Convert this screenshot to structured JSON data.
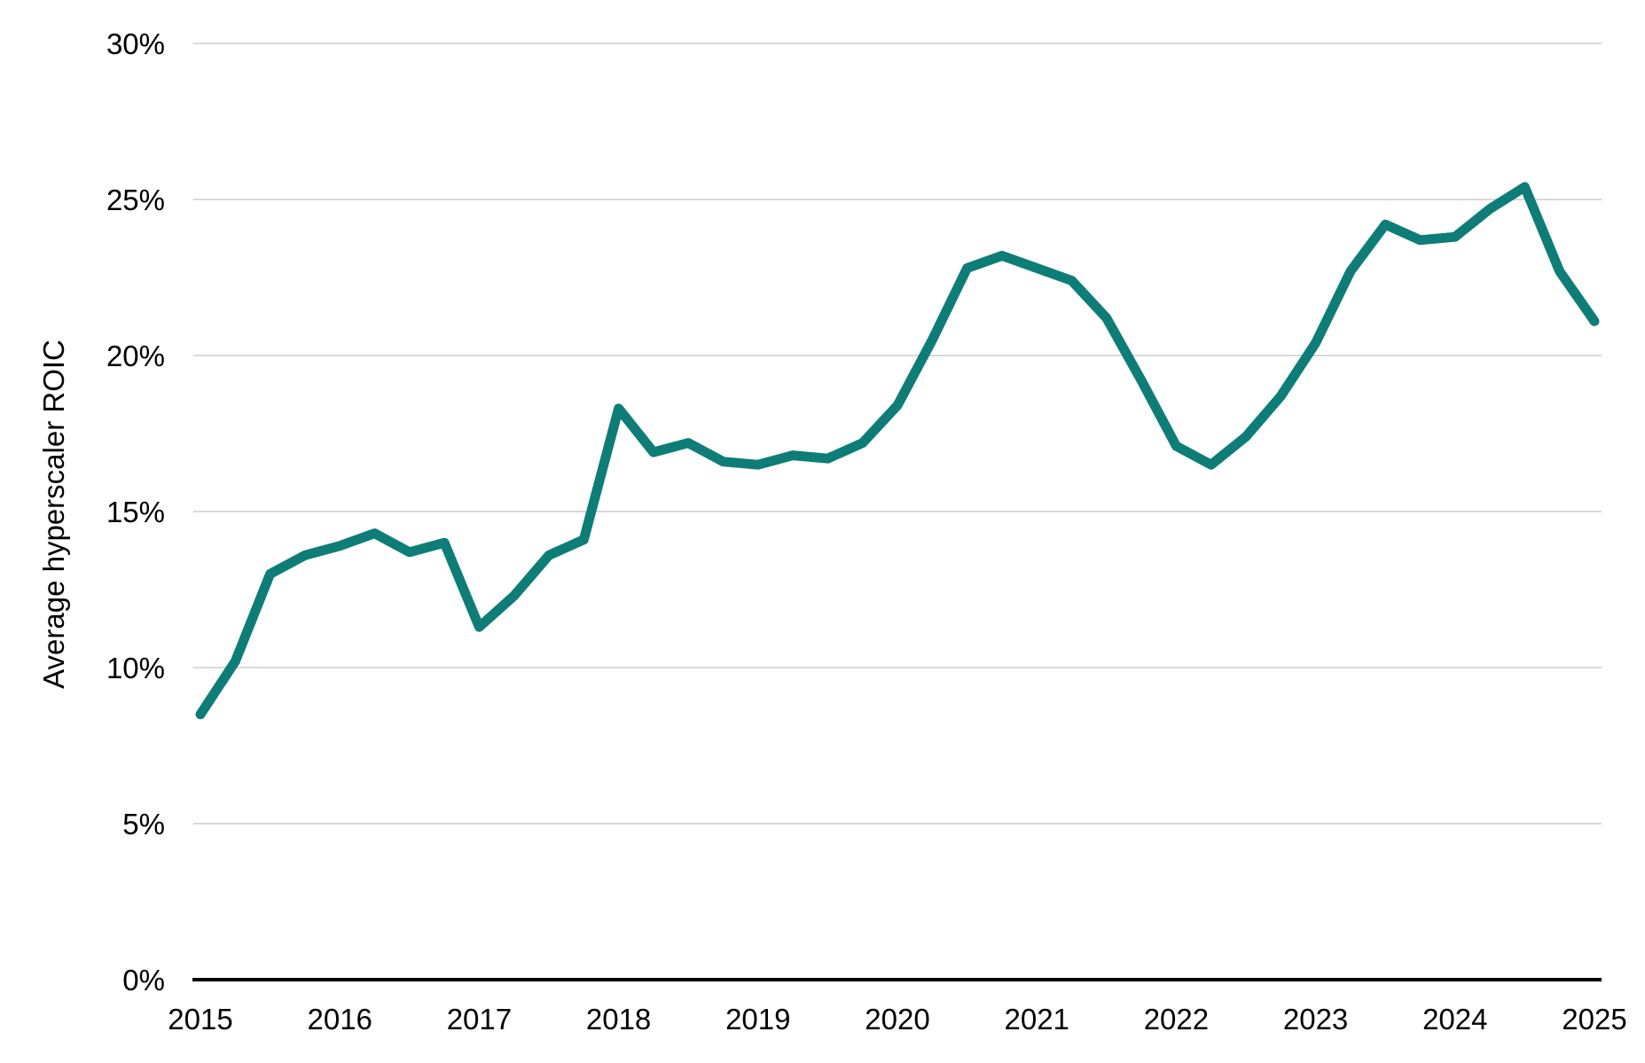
{
  "chart_data": {
    "type": "line",
    "title": "",
    "xlabel": "",
    "ylabel": "Average hyperscaler ROIC",
    "series_name": "Average hyperscaler ROIC",
    "x": [
      2015.0,
      2015.25,
      2015.5,
      2015.75,
      2016.0,
      2016.25,
      2016.5,
      2016.75,
      2017.0,
      2017.25,
      2017.5,
      2017.75,
      2018.0,
      2018.25,
      2018.5,
      2018.75,
      2019.0,
      2019.25,
      2019.5,
      2019.75,
      2020.0,
      2020.25,
      2020.5,
      2020.75,
      2021.0,
      2021.25,
      2021.5,
      2021.75,
      2022.0,
      2022.25,
      2022.5,
      2022.75,
      2023.0,
      2023.25,
      2023.5,
      2023.75,
      2024.0,
      2024.25,
      2024.5,
      2024.75,
      2025.0
    ],
    "values": [
      8.5,
      10.2,
      13.0,
      13.6,
      13.9,
      14.3,
      13.7,
      14.0,
      11.3,
      12.3,
      13.6,
      14.1,
      18.3,
      16.9,
      17.2,
      16.6,
      16.5,
      16.8,
      16.7,
      17.2,
      18.4,
      20.5,
      22.8,
      23.2,
      22.8,
      22.4,
      21.2,
      19.2,
      17.1,
      16.5,
      17.4,
      18.7,
      20.4,
      22.7,
      24.2,
      23.7,
      23.8,
      24.7,
      25.4,
      22.7,
      21.1
    ],
    "x_tick_labels": [
      "2015",
      "2016",
      "2017",
      "2018",
      "2019",
      "2020",
      "2021",
      "2022",
      "2023",
      "2024",
      "2025"
    ],
    "x_tick_values": [
      2015,
      2016,
      2017,
      2018,
      2019,
      2020,
      2021,
      2022,
      2023,
      2024,
      2025
    ],
    "y_tick_labels": [
      "0%",
      "5%",
      "10%",
      "15%",
      "20%",
      "25%",
      "30%"
    ],
    "y_tick_values": [
      0,
      5,
      10,
      15,
      20,
      25,
      30
    ],
    "xlim": [
      2015,
      2025
    ],
    "ylim": [
      0,
      30
    ],
    "grid": "horizontal-only",
    "legend": "none",
    "line_color": "#0e7d78",
    "grid_color": "#d9d9d9",
    "axis_color": "#000000",
    "text_color": "#000000"
  }
}
